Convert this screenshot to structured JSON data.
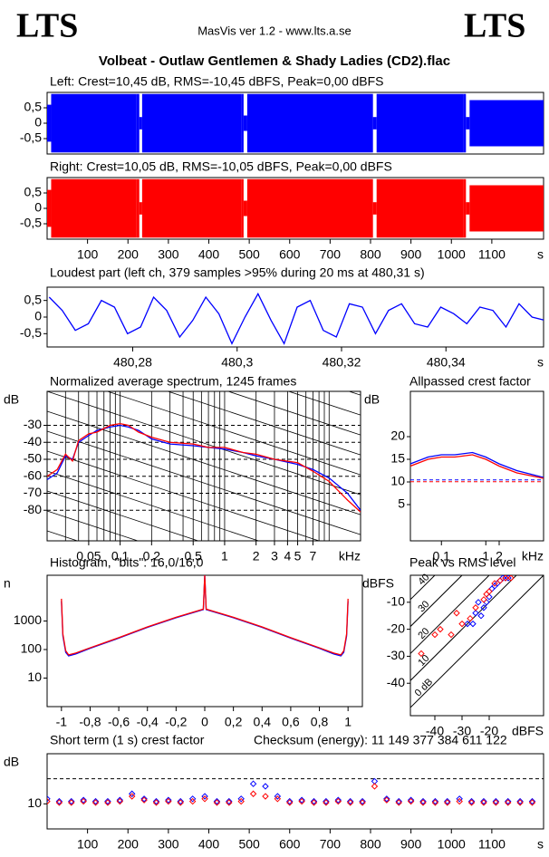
{
  "header": {
    "logo_left": "LTS",
    "logo_right": "LTS",
    "app": "MasVis ver 1.2 - www.lts.a.se",
    "title": "Volbeat - Outlaw Gentlemen & Shady Ladies (CD2).flac"
  },
  "chart_data": [
    {
      "type": "envelope",
      "title": "Left: Crest=10,45 dB, RMS=-10,45 dBFS, Peak=0,00 dBFS",
      "xlim": [
        0,
        1228
      ],
      "ylim": [
        -1,
        1
      ],
      "yticks": [
        {
          "value": 0.5,
          "label": "0,5"
        },
        0,
        {
          "value": -0.5,
          "label": "-0,5"
        }
      ],
      "x": [
        0,
        10,
        220,
        228,
        235,
        480,
        486,
        495,
        800,
        806,
        815,
        1030,
        1036,
        1045,
        1228
      ],
      "series": [
        {
          "color": "#0000ff",
          "max": [
            0.6,
            0.95,
            0.95,
            0.2,
            0.95,
            0.95,
            0.25,
            0.95,
            0.95,
            0.2,
            0.95,
            0.95,
            0.2,
            0.75,
            0.75
          ],
          "min": [
            -0.6,
            -0.95,
            -0.95,
            -0.2,
            -0.95,
            -0.95,
            -0.25,
            -0.95,
            -0.95,
            -0.2,
            -0.95,
            -0.95,
            -0.2,
            -0.75,
            -0.75
          ]
        }
      ]
    },
    {
      "type": "envelope",
      "title": "Right: Crest=10,05 dB, RMS=-10,05 dBFS, Peak=0,00 dBFS",
      "xlim": [
        0,
        1228
      ],
      "ylim": [
        -1,
        1
      ],
      "yticks": [
        {
          "value": 0.5,
          "label": "0,5"
        },
        0,
        {
          "value": -0.5,
          "label": "-0,5"
        }
      ],
      "xticks": [
        100,
        200,
        300,
        400,
        500,
        600,
        700,
        800,
        900,
        1000,
        1100
      ],
      "xlabel": "s",
      "x": [
        0,
        10,
        220,
        228,
        235,
        480,
        486,
        495,
        800,
        806,
        815,
        1030,
        1036,
        1045,
        1228
      ],
      "series": [
        {
          "color": "#ff0000",
          "max": [
            0.6,
            0.95,
            0.95,
            0.2,
            0.95,
            0.95,
            0.25,
            0.95,
            0.95,
            0.2,
            0.95,
            0.95,
            0.2,
            0.75,
            0.75
          ],
          "min": [
            -0.6,
            -0.95,
            -0.95,
            -0.2,
            -0.95,
            -0.95,
            -0.25,
            -0.95,
            -0.95,
            -0.2,
            -0.95,
            -0.95,
            -0.2,
            -0.75,
            -0.75
          ]
        }
      ]
    },
    {
      "type": "line",
      "title": "Loudest part (left  ch, 379 samples >95% during 20 ms at 480,31 s)",
      "xlim": [
        480.2636,
        480.3587
      ],
      "ylim": [
        -0.9,
        0.9
      ],
      "yticks": [
        {
          "value": 0.5,
          "label": "0,5"
        },
        0,
        {
          "value": -0.5,
          "label": "-0,5"
        }
      ],
      "xticks": [
        {
          "value": 480.28,
          "label": "480,28"
        },
        {
          "value": 480.3,
          "label": "480,3"
        },
        {
          "value": 480.32,
          "label": "480,32"
        },
        {
          "value": 480.34,
          "label": "480,34"
        }
      ],
      "xlabel": "s",
      "x": [
        480.264,
        480.2665,
        480.269,
        480.2715,
        480.274,
        480.2765,
        480.279,
        480.2815,
        480.284,
        480.2865,
        480.289,
        480.2915,
        480.294,
        480.2965,
        480.299,
        480.3015,
        480.304,
        480.3065,
        480.309,
        480.3115,
        480.314,
        480.3165,
        480.319,
        480.3215,
        480.324,
        480.3265,
        480.329,
        480.3315,
        480.334,
        480.3365,
        480.339,
        480.3415,
        480.344,
        480.3465,
        480.349,
        480.3515,
        480.354,
        480.3565,
        480.359
      ],
      "series": [
        {
          "color": "#0000ff",
          "values": [
            0.6,
            0.2,
            -0.4,
            -0.2,
            0.5,
            0.3,
            -0.5,
            -0.3,
            0.6,
            0.2,
            -0.6,
            -0.1,
            0.6,
            0.1,
            -0.8,
            0.0,
            0.7,
            -0.1,
            -0.8,
            0.3,
            0.5,
            -0.4,
            -0.6,
            0.4,
            0.3,
            -0.5,
            0.2,
            0.4,
            -0.2,
            -0.3,
            0.3,
            0.1,
            -0.2,
            0.3,
            0.2,
            -0.3,
            0.4,
            0.0,
            -0.1
          ]
        }
      ]
    },
    {
      "type": "line",
      "title": "Normalized average spectrum, 1245 frames",
      "ylabel": "dB",
      "xlabel": "kHz",
      "log_x": true,
      "grid_y": true,
      "xlim": [
        0.02,
        20
      ],
      "ylim": [
        -98,
        -10
      ],
      "yticks": [
        -30,
        -40,
        -50,
        -60,
        -70,
        -80
      ],
      "xticks": [
        {
          "value": 0.05,
          "label": "0,05"
        },
        {
          "value": 0.1,
          "label": "0,1"
        },
        {
          "value": 0.2,
          "label": "0,2"
        },
        {
          "value": 0.5,
          "label": "0,5"
        },
        1,
        2,
        3,
        4,
        5,
        7
      ],
      "xgrid": [
        0.03,
        0.04,
        0.05,
        0.06,
        0.07,
        0.08,
        0.09,
        0.1,
        0.2,
        0.3,
        0.4,
        0.5,
        0.6,
        0.7,
        0.8,
        0.9,
        1,
        2,
        3,
        4,
        5,
        6,
        7,
        8,
        9,
        10
      ],
      "x": [
        0.02,
        0.025,
        0.03,
        0.035,
        0.04,
        0.05,
        0.06,
        0.08,
        0.1,
        0.12,
        0.15,
        0.2,
        0.3,
        0.5,
        0.7,
        1,
        1.5,
        2,
        3,
        5,
        7,
        10,
        15,
        20
      ],
      "series": [
        {
          "color": "#0000ff",
          "values": [
            -62,
            -58,
            -48,
            -50,
            -40,
            -36,
            -33,
            -31,
            -30,
            -31,
            -33,
            -38,
            -41,
            -42,
            -43,
            -44,
            -46,
            -48,
            -50,
            -53,
            -56,
            -61,
            -70,
            -80
          ]
        },
        {
          "color": "#ff0000",
          "values": [
            -60,
            -56,
            -47,
            -51,
            -39,
            -35,
            -34,
            -30,
            -29,
            -30,
            -34,
            -37,
            -40,
            -41,
            -43,
            -43,
            -46,
            -47,
            -50,
            -52,
            -57,
            -63,
            -74,
            -81
          ]
        }
      ]
    },
    {
      "type": "line",
      "title": "Allpassed crest factor",
      "ylabel": "dB",
      "xlabel": "kHz",
      "log_x": true,
      "xlim": [
        0.02,
        20
      ],
      "ylim": [
        -3,
        30
      ],
      "yticks": [
        5,
        10,
        15,
        20
      ],
      "xticks": [
        {
          "value": 0.1,
          "label": "0,1"
        },
        1,
        2
      ],
      "hlines": [
        {
          "value": 10.45,
          "color": "#0000ff"
        },
        {
          "value": 10.05,
          "color": "#ff0000"
        }
      ],
      "x": [
        0.02,
        0.05,
        0.1,
        0.2,
        0.5,
        1,
        2,
        5,
        20
      ],
      "series": [
        {
          "color": "#0000ff",
          "values": [
            14,
            15.5,
            16,
            16,
            16.5,
            15.5,
            14,
            12.5,
            11
          ]
        },
        {
          "color": "#ff0000",
          "values": [
            13.5,
            15,
            15.5,
            15.5,
            16,
            15,
            13.5,
            12,
            10.8
          ]
        }
      ]
    },
    {
      "type": "line",
      "title": "Histogram, \"bits\": 16,0/16,0",
      "ylabel": "n",
      "log_y": true,
      "xlim": [
        -1.1,
        1.1
      ],
      "ylim": [
        1,
        40000
      ],
      "yticks": [
        10,
        100,
        1000
      ],
      "xticks": [
        -1,
        {
          "value": -0.8,
          "label": "-0,8"
        },
        {
          "value": -0.6,
          "label": "-0,6"
        },
        {
          "value": -0.4,
          "label": "-0,4"
        },
        {
          "value": -0.2,
          "label": "-0,2"
        },
        0,
        {
          "value": 0.2,
          "label": "0,2"
        },
        {
          "value": 0.4,
          "label": "0,4"
        },
        {
          "value": 0.6,
          "label": "0,6"
        },
        {
          "value": 0.8,
          "label": "0,8"
        },
        1
      ],
      "x": [
        -1,
        -0.99,
        -0.97,
        -0.95,
        -0.9,
        -0.8,
        -0.6,
        -0.4,
        -0.2,
        -0.01,
        0,
        0.01,
        0.2,
        0.4,
        0.6,
        0.8,
        0.9,
        0.95,
        0.97,
        0.99,
        1
      ],
      "series": [
        {
          "color": "#0000ff",
          "values": [
            5000,
            300,
            80,
            60,
            70,
            110,
            250,
            600,
            1300,
            2500,
            40000,
            2500,
            1300,
            600,
            250,
            110,
            70,
            60,
            80,
            300,
            5000
          ]
        },
        {
          "color": "#ff0000",
          "values": [
            6000,
            350,
            90,
            65,
            75,
            115,
            260,
            620,
            1350,
            2600,
            40000,
            2600,
            1350,
            620,
            260,
            115,
            75,
            65,
            90,
            350,
            6000
          ]
        }
      ]
    },
    {
      "type": "scatter",
      "title": "Peak vs RMS level",
      "ylabel": "dBFS",
      "xlabel": "dBFS",
      "xlim": [
        -49,
        0
      ],
      "ylim": [
        -52,
        0
      ],
      "yticks": [
        -10,
        -20,
        -30,
        -40
      ],
      "xticks": [
        -40,
        -30,
        -20
      ],
      "crest_lines": [
        {
          "value": 0,
          "label": "0 dB"
        },
        10,
        20,
        30,
        40
      ],
      "series": [
        {
          "color": "#0000ff",
          "x": [
            -28,
            -25,
            -22,
            -20,
            -19,
            -18,
            -17,
            -16,
            -15,
            -21,
            -24,
            -14,
            -13,
            -23,
            -26
          ],
          "values": [
            -18,
            -14,
            -12,
            -8,
            -5,
            -4,
            -3,
            -2,
            -1,
            -10,
            -10,
            -1,
            -1,
            -15,
            -18
          ]
        },
        {
          "color": "#ff0000",
          "x": [
            -45,
            -40,
            -38,
            -34,
            -32,
            -30,
            -27,
            -25,
            -22,
            -20,
            -18,
            -16,
            -14,
            -12,
            -21
          ],
          "values": [
            -29,
            -22,
            -20,
            -22,
            -14,
            -18,
            -16,
            -12,
            -9,
            -6,
            -3,
            -2,
            -1,
            -1,
            -7
          ]
        }
      ]
    },
    {
      "type": "scatter",
      "title": "Short term (1 s) crest factor",
      "annotation": "Checksum (energy):  11 149 377 384 611 122",
      "ylabel": "dB",
      "xlabel": "s",
      "xlim": [
        0,
        1228
      ],
      "ylim": [
        0,
        30
      ],
      "yticks": [
        10
      ],
      "xticks": [
        100,
        200,
        300,
        400,
        500,
        600,
        700,
        800,
        900,
        1000,
        1100
      ],
      "hlines": [
        {
          "value": 20,
          "color": "#000000"
        }
      ],
      "x": [
        0,
        30,
        60,
        90,
        120,
        150,
        180,
        210,
        240,
        270,
        300,
        330,
        360,
        390,
        420,
        450,
        480,
        510,
        540,
        570,
        600,
        630,
        660,
        690,
        720,
        750,
        780,
        810,
        840,
        870,
        900,
        930,
        960,
        990,
        1020,
        1050,
        1080,
        1110,
        1140,
        1170,
        1200
      ],
      "series": [
        {
          "color": "#0000ff",
          "values": [
            12,
            11,
            11,
            11.5,
            11,
            11,
            11.5,
            14,
            12,
            11,
            11.5,
            11,
            12,
            13,
            11,
            11,
            12,
            18,
            17,
            13,
            11,
            11.5,
            11,
            11,
            11.5,
            11,
            11,
            19,
            12,
            11,
            11.5,
            11,
            11,
            11,
            12,
            11,
            11,
            11,
            11,
            11,
            11
          ]
        },
        {
          "color": "#ff0000",
          "values": [
            11,
            10.5,
            10.5,
            11,
            10.5,
            10.5,
            11,
            13,
            11.5,
            10.5,
            11,
            10.5,
            11,
            12,
            10.5,
            10.5,
            11,
            14,
            13,
            12,
            10.5,
            11,
            10.5,
            10.5,
            11,
            10.5,
            10.5,
            17,
            11.5,
            10.5,
            11,
            10.5,
            10.5,
            10.5,
            11,
            10.5,
            10.5,
            10.5,
            10.5,
            10.5,
            10.5
          ]
        }
      ]
    }
  ]
}
